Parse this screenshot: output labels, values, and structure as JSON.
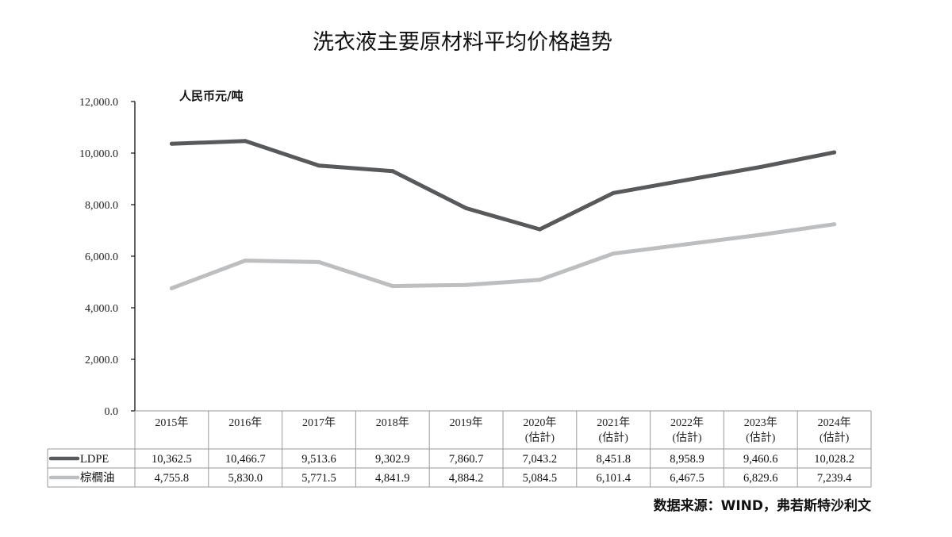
{
  "chart_data": {
    "type": "line",
    "title": "洗衣液主要原材料平均价格趋势",
    "unit_label": "人民币元/吨",
    "source": "数据来源：WIND，弗若斯特沙利文",
    "categories": [
      [
        "2015年"
      ],
      [
        "2016年"
      ],
      [
        "2017年"
      ],
      [
        "2018年"
      ],
      [
        "2019年"
      ],
      [
        "2020年",
        "(估計)"
      ],
      [
        "2021年",
        "(估計)"
      ],
      [
        "2022年",
        "(估計)"
      ],
      [
        "2023年",
        "(估計)"
      ],
      [
        "2024年",
        "(估計)"
      ]
    ],
    "ylim": [
      0,
      12000
    ],
    "yticks": [
      "0.0",
      "2,000.0",
      "4,000.0",
      "6,000.0",
      "8,000.0",
      "10,000.0",
      "12,000.0"
    ],
    "grid": false,
    "legend_position": "table-left",
    "series": [
      {
        "name": "LDPE",
        "color": "#58595b",
        "values": [
          10362.5,
          10466.7,
          9513.6,
          9302.9,
          7860.7,
          7043.2,
          8451.8,
          8958.9,
          9460.6,
          10028.2
        ],
        "labels": [
          "10,362.5",
          "10,466.7",
          "9,513.6",
          "9,302.9",
          "7,860.7",
          "7,043.2",
          "8,451.8",
          "8,958.9",
          "9,460.6",
          "10,028.2"
        ]
      },
      {
        "name": "棕櫚油",
        "color": "#bcbec0",
        "values": [
          4755.8,
          5830.0,
          5771.5,
          4841.9,
          4884.2,
          5084.5,
          6101.4,
          6467.5,
          6829.6,
          7239.4
        ],
        "labels": [
          "4,755.8",
          "5,830.0",
          "5,771.5",
          "4,841.9",
          "4,884.2",
          "5,084.5",
          "6,101.4",
          "6,467.5",
          "6,829.6",
          "7,239.4"
        ]
      }
    ]
  }
}
